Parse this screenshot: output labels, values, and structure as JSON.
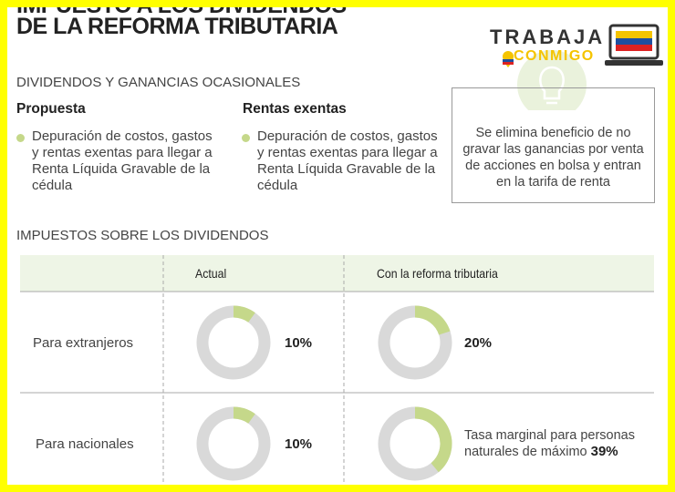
{
  "header": {
    "title_top": "IMPUESTO A LOS DIVIDENDOS",
    "title": "DE LA REFORMA TRIBUTARIA",
    "logo": {
      "line1": "TRABAJA",
      "line2": "CONMIGO"
    }
  },
  "section1": {
    "heading": "DIVIDENDOS Y GANANCIAS OCASIONALES",
    "columns": [
      {
        "heading": "Propuesta",
        "text": "Depuración de costos, gastos y rentas exentas para llegar a Renta Líquida Gravable de la cédula"
      },
      {
        "heading": "Rentas exentas",
        "text": "Depuración de costos, gastos y rentas exentas para llegar a Renta Líquida Gravable de la cédula"
      }
    ],
    "note": "Se elimina beneficio de no gravar las ganancias por venta de acciones en bolsa y entran en la tarifa de renta"
  },
  "section2": {
    "heading": "IMPUESTOS SOBRE LOS DIVIDENDOS",
    "table": {
      "header": [
        "Actual",
        "Con la reforma tributaria"
      ],
      "rows": [
        {
          "label": "Para extranjeros",
          "actual": {
            "value": 10,
            "label": "10%"
          },
          "reforma": {
            "value": 20,
            "label": "20%"
          }
        },
        {
          "label": "Para nacionales",
          "actual": {
            "value": 10,
            "label": "10%"
          },
          "reforma_text": "Tasa marginal para personas naturales de máximo",
          "reforma": {
            "value": 39,
            "label": "39%"
          }
        }
      ]
    }
  }
}
